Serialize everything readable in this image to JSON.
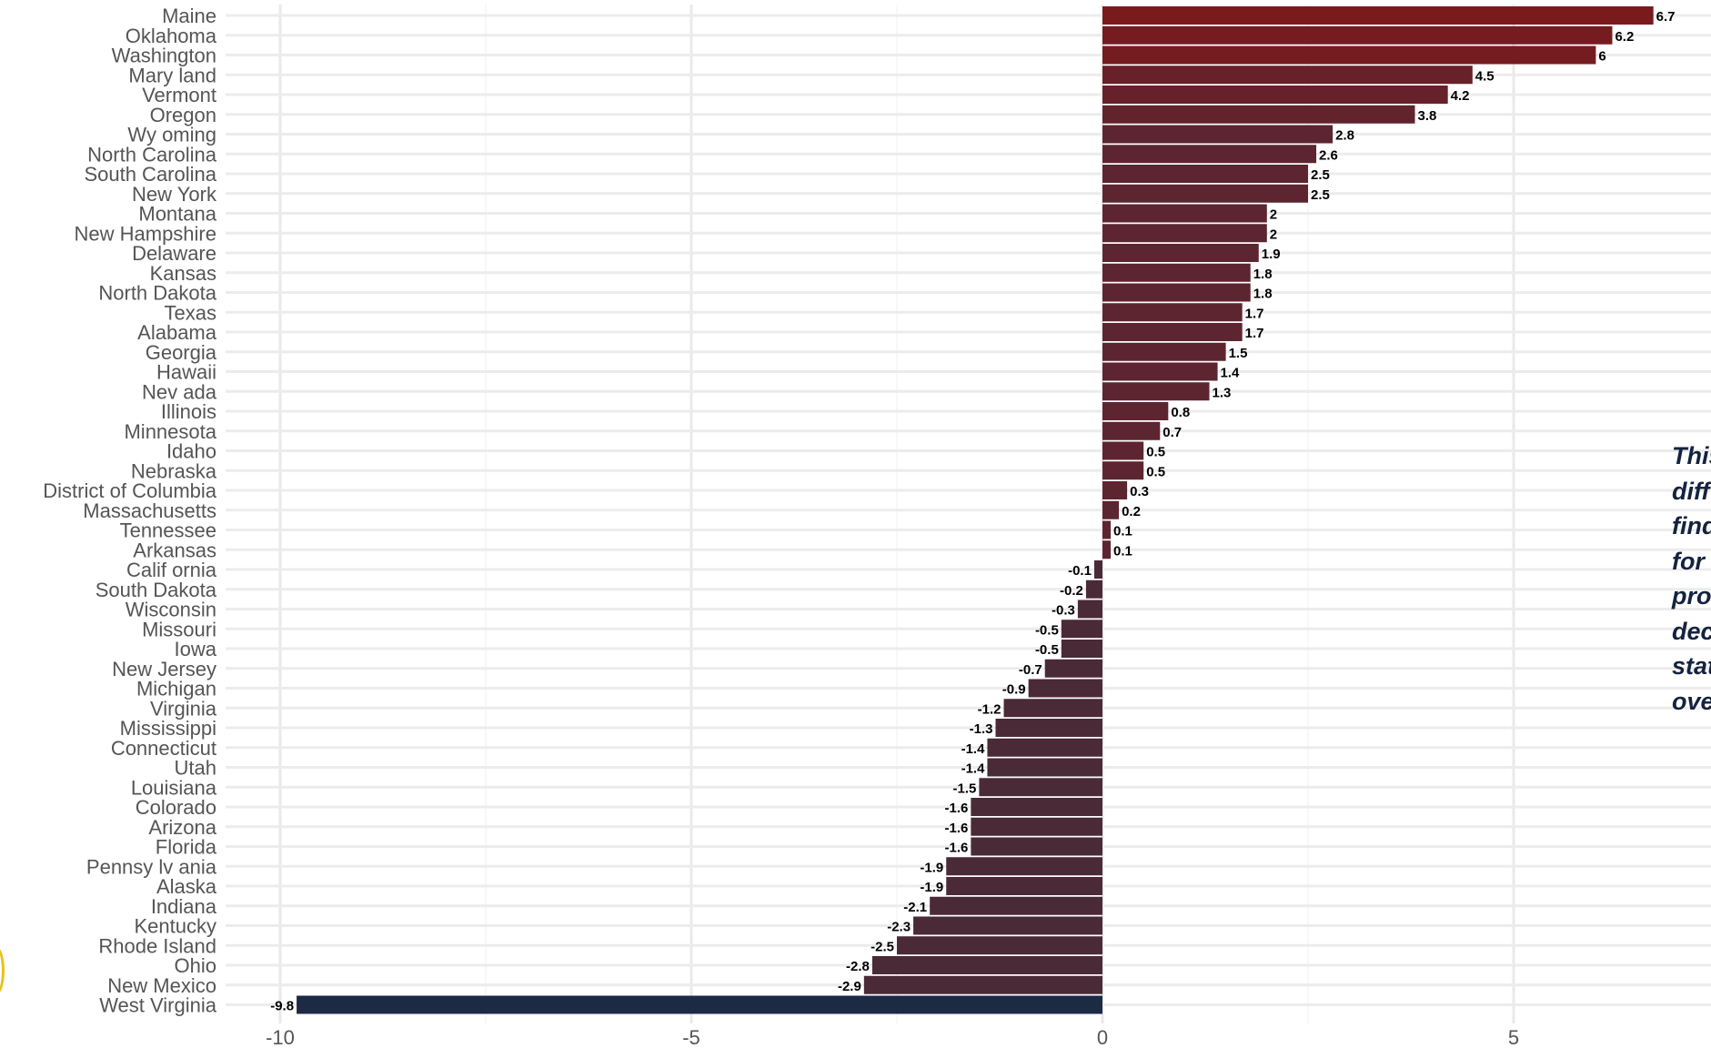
{
  "chart_data": {
    "type": "bar",
    "orientation": "horizontal",
    "title": "",
    "xlabel": "",
    "ylabel": "",
    "xlim": [
      -12,
      7.5
    ],
    "xticks": [
      -10,
      -5,
      0,
      5
    ],
    "grid": true,
    "legend": "none",
    "colors": {
      "positive_high": "#7a1a1c",
      "positive_low": "#5c2530",
      "negative": "#4a2a36",
      "min_highlight": "#1c2a44"
    },
    "categories": [
      "Maine",
      "Oklahoma",
      "Washington",
      "Mary land",
      "Vermont",
      "Oregon",
      "Wy oming",
      "North Carolina",
      "South Carolina",
      "New York",
      "Montana",
      "New Hampshire",
      "Delaware",
      "Kansas",
      "North Dakota",
      "Texas",
      "Alabama",
      "Georgia",
      "Hawaii",
      "Nev ada",
      "Illinois",
      "Minnesota",
      "Idaho",
      "Nebraska",
      "District of Columbia",
      "Massachusetts",
      "Tennessee",
      "Arkansas",
      "Calif ornia",
      "South Dakota",
      "Wisconsin",
      "Missouri",
      "Iowa",
      "New Jersey",
      "Michigan",
      "Virginia",
      "Mississippi",
      "Connecticut",
      "Utah",
      "Louisiana",
      "Colorado",
      "Arizona",
      "Florida",
      "Pennsy lv ania",
      "Alaska",
      "Indiana",
      "Kentucky",
      "Rhode Island",
      "Ohio",
      "New Mexico",
      "West Virginia"
    ],
    "values": [
      6.7,
      6.2,
      6,
      4.5,
      4.2,
      3.8,
      2.8,
      2.6,
      2.5,
      2.5,
      2,
      2,
      1.9,
      1.8,
      1.8,
      1.7,
      1.7,
      1.5,
      1.4,
      1.3,
      0.8,
      0.7,
      0.5,
      0.5,
      0.3,
      0.2,
      0.1,
      0.1,
      -0.1,
      -0.2,
      -0.3,
      -0.5,
      -0.5,
      -0.7,
      -0.9,
      -1.2,
      -1.3,
      -1.4,
      -1.4,
      -1.5,
      -1.6,
      -1.6,
      -1.6,
      -1.9,
      -1.9,
      -2.1,
      -2.3,
      -2.5,
      -2.8,
      -2.9,
      -9.8
    ]
  },
  "side_note": "This\ndiff\nfind\nfor\npro\ndec\nstat\nove"
}
